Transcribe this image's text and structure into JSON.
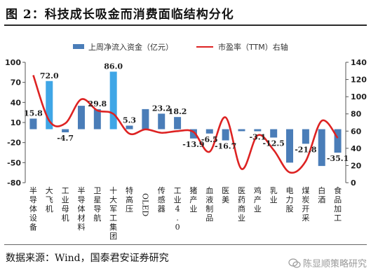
{
  "figure": {
    "title": "图 2：科技成长吸金而消费面临结构分化",
    "source": "数据来源：Wind，国泰君安证券研究",
    "watermark": "陈显顺策略研究"
  },
  "chart_data": {
    "type": "bar",
    "categories": [
      "半导体设备",
      "大飞机",
      "工业母机",
      "半导体材料",
      "卫星导航",
      "十大军工集团",
      "特高压",
      "OLED",
      "传感器",
      "工业4.0",
      "猪产业",
      "血液制品",
      "医美",
      "医药商业",
      "鸡产业",
      "乳业",
      "电力股",
      "煤炭开采",
      "白酒",
      "食品加工"
    ],
    "series": [
      {
        "name": "上周净流入资金（亿元）",
        "type": "bar",
        "axis": "left",
        "values": [
          15.8,
          72.0,
          -4.7,
          35.0,
          29.8,
          86.0,
          5.3,
          30.0,
          23.2,
          18.2,
          -13.9,
          -6.5,
          -16.7,
          -3.0,
          -3.1,
          -12.5,
          -50.0,
          -21.8,
          -55.0,
          -35.1
        ],
        "labels": [
          "15.8",
          "72.0",
          "-4.7",
          null,
          "29.8",
          "86.0",
          "5.3",
          null,
          "23.2",
          "18.2",
          "-13.9",
          "-6.5",
          "-16.7",
          null,
          "-3.1",
          "-12.5",
          null,
          "-21.8",
          null,
          "-35.1"
        ],
        "highlight": [
          false,
          true,
          false,
          false,
          false,
          true,
          false,
          false,
          false,
          false,
          false,
          false,
          false,
          false,
          false,
          false,
          false,
          false,
          false,
          false
        ]
      },
      {
        "name": "市盈率（TTM）右轴",
        "type": "line",
        "axis": "right",
        "values": [
          125,
          72,
          69,
          97,
          84,
          80,
          57,
          62,
          58,
          60,
          59,
          36,
          76,
          16,
          55,
          38,
          12,
          25,
          72,
          52
        ]
      }
    ],
    "y_left": {
      "min": -80,
      "max": 100,
      "ticks": [
        100,
        70,
        40,
        10,
        -20,
        -50,
        -80
      ]
    },
    "y_right": {
      "min": 0,
      "max": 140,
      "ticks": [
        140,
        120,
        100,
        80,
        60,
        40,
        20,
        0
      ]
    },
    "legend_position": "top",
    "grid": false,
    "colors": {
      "bar": "#4a7db8",
      "bar_highlight": "#3fa6e6",
      "line": "#dd2222"
    }
  }
}
